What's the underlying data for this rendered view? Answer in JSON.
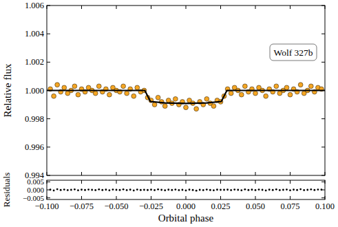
{
  "chart_data": [
    {
      "type": "scatter",
      "annotation": "Wolf 327b",
      "y_label": "Relative flux",
      "xlim": [
        -0.1,
        0.1
      ],
      "xticks": [
        {
          "value": -0.1,
          "label": "−0.100"
        },
        {
          "value": -0.075,
          "label": "−0.075"
        },
        {
          "value": -0.05,
          "label": "−0.050"
        },
        {
          "value": -0.025,
          "label": "−0.025"
        },
        {
          "value": 0,
          "label": "0.000"
        },
        0.025,
        {
          "value": 0.05,
          "label": "0.050"
        },
        0.075,
        {
          "value": 0.1,
          "label": "0.100"
        }
      ],
      "ylim": [
        0.994,
        1.006
      ],
      "yticks": [
        0.994,
        0.996,
        0.998,
        {
          "value": 1,
          "label": "1.000"
        },
        1.002,
        1.004,
        1.006
      ],
      "tick_labels": "y",
      "series": [
        {
          "type": "scatter",
          "color": "#f5a623",
          "marker": "circle",
          "x": [
            -0.0975,
            -0.095,
            -0.0925,
            -0.09,
            -0.0875,
            -0.085,
            -0.0825,
            -0.08,
            -0.0775,
            -0.075,
            -0.0725,
            -0.07,
            -0.0675,
            -0.065,
            -0.0625,
            -0.06,
            -0.0575,
            -0.055,
            -0.0525,
            -0.05,
            -0.0475,
            -0.045,
            -0.0425,
            -0.04,
            -0.0375,
            -0.035,
            -0.0325,
            -0.03,
            -0.0275,
            -0.025,
            -0.0225,
            -0.02,
            -0.0175,
            -0.015,
            -0.0125,
            -0.01,
            -0.0075,
            -0.005,
            -0.0025,
            0,
            0.0025,
            0.005,
            0.0075,
            0.01,
            0.0125,
            0.015,
            0.0175,
            0.02,
            0.0225,
            0.025,
            0.0275,
            0.03,
            0.0325,
            0.035,
            0.0375,
            0.04,
            0.0425,
            0.045,
            0.0475,
            0.05,
            0.0525,
            0.055,
            0.0575,
            0.06,
            0.0625,
            0.065,
            0.0675,
            0.07,
            0.0725,
            0.075,
            0.0775,
            0.08,
            0.0825,
            0.085,
            0.0875,
            0.09,
            0.0925,
            0.095,
            0.0975
          ],
          "values": [
            1.0001,
            0.9996,
            1.0004,
            0.9999,
            1.0002,
            0.9998,
            1.0,
            1.0003,
            0.9997,
            1.0001,
            0.9999,
            1.0002,
            1.0,
            0.9998,
            1.0003,
            0.9999,
            1.0001,
            0.9997,
            1.0002,
            1.0,
            0.9999,
            1.0003,
            0.9998,
            1.0001,
            0.9996,
            1.0002,
            0.9999,
            1.0,
            0.9995,
            0.9993,
            0.999,
            0.9995,
            0.9992,
            0.9989,
            0.9993,
            0.9991,
            0.9994,
            0.999,
            0.9992,
            0.9988,
            0.9993,
            0.9991,
            0.9987,
            0.9992,
            0.999,
            0.9994,
            0.9991,
            0.9989,
            0.9993,
            0.9992,
            0.9996,
            1.0001,
            0.9998,
            1.0002,
            1.0,
            0.9997,
            1.0003,
            0.9999,
            1.0001,
            0.9998,
            1.0002,
            1.0,
            0.9996,
            1.0001,
            0.9999,
            1.0003,
            0.9998,
            1.0,
            1.0002,
            0.9997,
            1.0001,
            0.9999,
            1.0004,
            0.9998,
            1.0,
            1.0003,
            0.9999,
            1.0002,
            1.0001
          ]
        },
        {
          "type": "line",
          "color": "#000000",
          "line_style": "solid",
          "x": [
            -0.1,
            -0.0295,
            -0.0255,
            -0.015,
            0,
            0.015,
            0.0255,
            0.0295,
            0.1
          ],
          "values": [
            1,
            1,
            0.99922,
            0.99912,
            0.99908,
            0.99912,
            0.99922,
            1,
            1
          ]
        }
      ]
    },
    {
      "type": "scatter",
      "x_label": "Orbital phase",
      "y_label": "Residuals",
      "xlim": [
        -0.1,
        0.1
      ],
      "xticks": [
        {
          "value": -0.1,
          "label": "−0.100"
        },
        {
          "value": -0.075,
          "label": "−0.075"
        },
        {
          "value": -0.05,
          "label": "−0.050"
        },
        {
          "value": -0.025,
          "label": "−0.025"
        },
        {
          "value": 0,
          "label": "0.000"
        },
        0.025,
        {
          "value": 0.05,
          "label": "0.050"
        },
        0.075,
        {
          "value": 0.1,
          "label": "0.100"
        }
      ],
      "ylim": [
        -0.006,
        0.006
      ],
      "yticks": [
        {
          "value": -0.005,
          "label": "−0.005"
        },
        {
          "value": 0,
          "label": "0.000"
        },
        0.005
      ],
      "series": [
        {
          "type": "scatter",
          "color": "#000000",
          "marker": "circle",
          "x": [
            -0.0975,
            -0.095,
            -0.0925,
            -0.09,
            -0.0875,
            -0.085,
            -0.0825,
            -0.08,
            -0.0775,
            -0.075,
            -0.0725,
            -0.07,
            -0.0675,
            -0.065,
            -0.0625,
            -0.06,
            -0.0575,
            -0.055,
            -0.0525,
            -0.05,
            -0.0475,
            -0.045,
            -0.0425,
            -0.04,
            -0.0375,
            -0.035,
            -0.0325,
            -0.03,
            -0.0275,
            -0.025,
            -0.0225,
            -0.02,
            -0.0175,
            -0.015,
            -0.0125,
            -0.01,
            -0.0075,
            -0.005,
            -0.0025,
            0,
            0.0025,
            0.005,
            0.0075,
            0.01,
            0.0125,
            0.015,
            0.0175,
            0.02,
            0.0225,
            0.025,
            0.0275,
            0.03,
            0.0325,
            0.035,
            0.0375,
            0.04,
            0.0425,
            0.045,
            0.0475,
            0.05,
            0.0525,
            0.055,
            0.0575,
            0.06,
            0.0625,
            0.065,
            0.0675,
            0.07,
            0.0725,
            0.075,
            0.0775,
            0.08,
            0.0825,
            0.085,
            0.0875,
            0.09,
            0.0925,
            0.095,
            0.0975
          ],
          "values": [
            0.0001,
            -0.0004,
            0.0004,
            -0.0001,
            0.0002,
            -0.0002,
            0,
            0.0003,
            -0.0003,
            0.0001,
            -0.0001,
            0.0002,
            0,
            -0.0002,
            0.0003,
            -0.0001,
            0.0001,
            -0.0003,
            0.0002,
            0,
            -0.0001,
            0.0003,
            -0.0002,
            0.0001,
            -0.0004,
            0.0002,
            -0.0001,
            0,
            -0.0001,
            0.0001,
            -0.0002,
            0.0003,
            0,
            -0.0003,
            0.0001,
            -0.0001,
            0.0002,
            -0.0002,
            0,
            -0.0004,
            0.0001,
            -0.0001,
            -0.0005,
            0,
            -0.0002,
            0.0002,
            -0.0001,
            -0.0003,
            0.0001,
            0,
            0,
            0.0001,
            -0.0002,
            0.0002,
            0,
            -0.0003,
            0.0003,
            -0.0001,
            0.0001,
            -0.0002,
            0.0002,
            0,
            -0.0004,
            0.0001,
            -0.0001,
            0.0003,
            -0.0002,
            0,
            0.0002,
            -0.0003,
            0.0001,
            -0.0001,
            0.0004,
            -0.0002,
            0,
            0.0003,
            -0.0001,
            0.0002,
            0.0001
          ]
        }
      ]
    }
  ]
}
